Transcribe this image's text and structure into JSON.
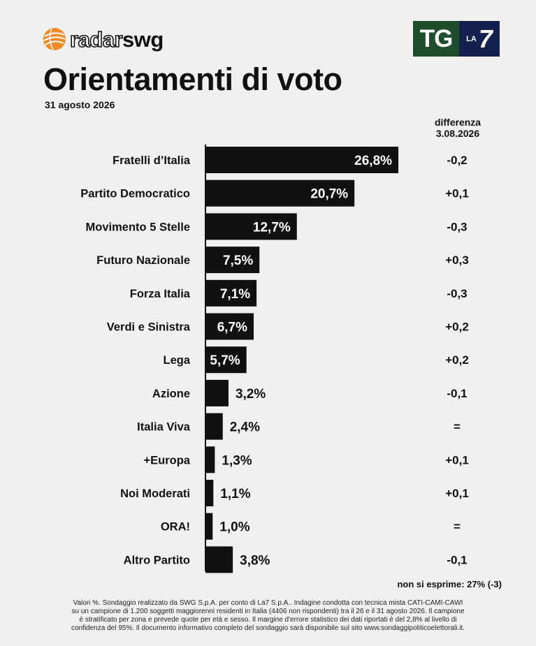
{
  "header": {
    "brand_light": "radar",
    "brand_bold": "swg",
    "tg_logo_left": "TG",
    "tg_logo_small": "LA",
    "tg_logo_number": "7"
  },
  "title": "Orientamenti di voto",
  "date": "31 agosto 2026",
  "diff_header_line1": "differenza",
  "diff_header_line2": "3.08.2026",
  "not_expressing": "non si esprime: 27% (-3)",
  "footnote": "Valori %. Sondaggio realizzato da SWG S.p.A. per conto di La7 S.p.A.. Indagine condotta con tecnica mista CATI-CAMI-CAWI su un campione di 1.200 soggetti maggiorenni residenti in Italia (4406 non rispondenti) tra il 26 e il 31 agosto 2026. Il campione è stratificato per zona e prevede quote per età e sesso. Il margine d'errore statistico dei dati riportati è del 2,8% al livello di confidenza del 95%. Il documento informativo completo del sondaggio sarà disponibile sul sito www.sondaggipoliticoelettorali.it.",
  "colors": {
    "bar": "#111111",
    "background": "#f1f0ee",
    "tg_green": "#1e4e2c",
    "la7_navy": "#13214c",
    "logo_orange": "#f08a24"
  },
  "chart_data": {
    "type": "bar",
    "orientation": "horizontal",
    "unit": "%",
    "categories": [
      "Fratelli d’Italia",
      "Partito Democratico",
      "Movimento 5 Stelle",
      "Futuro Nazionale",
      "Forza Italia",
      "Verdi e Sinistra",
      "Lega",
      "Azione",
      "Italia Viva",
      "+Europa",
      "Noi Moderati",
      "ORA!",
      "Altro Partito"
    ],
    "values": [
      26.8,
      20.7,
      12.7,
      7.5,
      7.1,
      6.7,
      5.7,
      3.2,
      2.4,
      1.3,
      1.1,
      1.0,
      3.8
    ],
    "value_labels": [
      "26,8%",
      "20,7%",
      "12,7%",
      "7,5%",
      "7,1%",
      "6,7%",
      "5,7%",
      "3,2%",
      "2,4%",
      "1,3%",
      "1,1%",
      "1,0%",
      "3,8%"
    ],
    "differences": [
      "-0,2",
      "+0,1",
      "-0,3",
      "+0,3",
      "-0,3",
      "+0,2",
      "+0,2",
      "-0,1",
      "=",
      "+0,1",
      "+0,1",
      "=",
      "-0,1"
    ],
    "title": "Orientamenti di voto",
    "xlabel": "",
    "ylabel": "",
    "grid": false
  }
}
